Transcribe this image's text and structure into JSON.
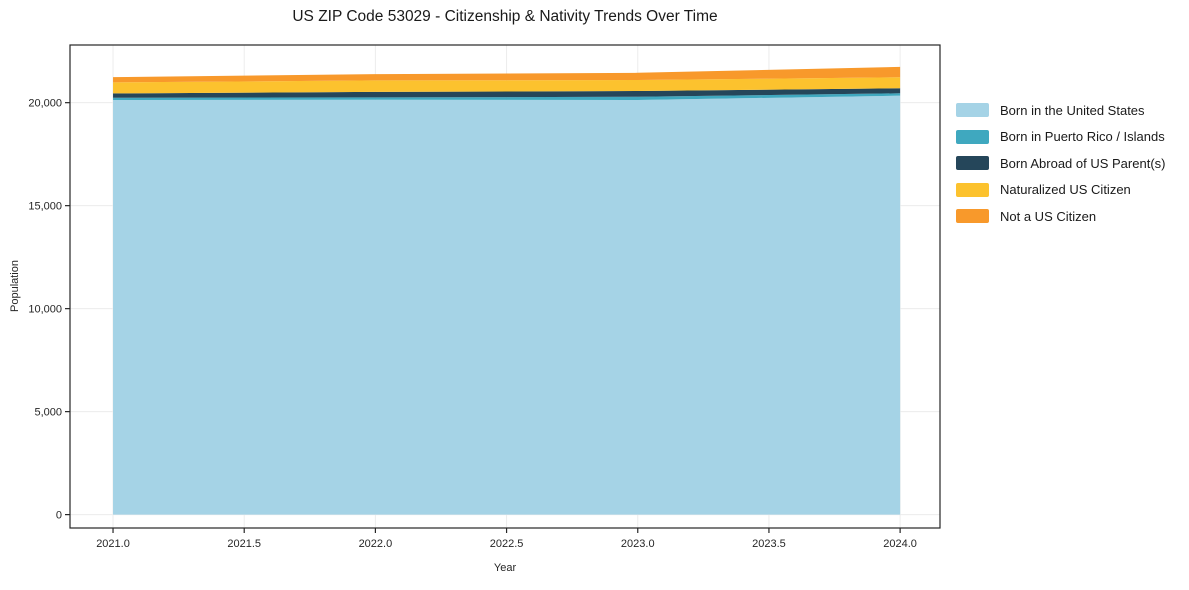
{
  "chart_data": {
    "type": "area",
    "stacked": true,
    "title": "US ZIP Code 53029 - Citizenship & Nativity Trends Over Time",
    "xlabel": "Year",
    "ylabel": "Population",
    "x": [
      2021,
      2022,
      2023,
      2024
    ],
    "series": [
      {
        "name": "Born in the United States",
        "color": "#a5d3e6",
        "values": [
          20130,
          20140,
          20130,
          20340
        ]
      },
      {
        "name": "Born in Puerto Rico / Islands",
        "color": "#3fa8bf",
        "values": [
          110,
          115,
          155,
          115
        ]
      },
      {
        "name": "Born Abroad of US Parent(s)",
        "color": "#25465a",
        "values": [
          210,
          270,
          280,
          245
        ]
      },
      {
        "name": "Naturalized US Citizen",
        "color": "#fcc22e",
        "values": [
          535,
          555,
          535,
          535
        ]
      },
      {
        "name": "Not a US Citizen",
        "color": "#f8992b",
        "values": [
          255,
          305,
          350,
          500
        ]
      }
    ],
    "totals": [
      21240,
      21385,
      21450,
      21735
    ],
    "xticks": [
      2021.0,
      2021.5,
      2022.0,
      2022.5,
      2023.0,
      2023.5,
      2024.0
    ],
    "yticks": [
      0,
      5000,
      10000,
      15000,
      20000
    ],
    "xlim": [
      2020.836,
      2024.152
    ],
    "ylim": [
      -650,
      22800
    ],
    "grid": true,
    "legend_position": "right",
    "colors": {
      "grid": "#ececec",
      "spine": "#262626",
      "tick": "#262626"
    }
  }
}
